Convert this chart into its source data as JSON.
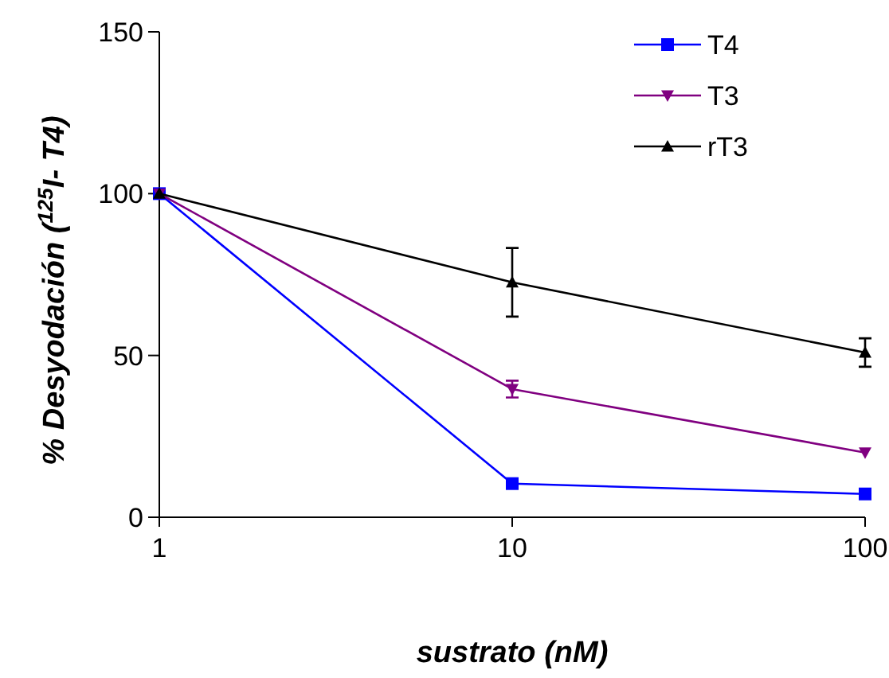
{
  "chart_data": {
    "type": "line",
    "xlabel": "sustrato (nM)",
    "ylabel": "% Desyodación ($^{125}$I- T4)",
    "log": "x",
    "xlim": [
      1,
      100
    ],
    "xticks": [
      1,
      10,
      100
    ],
    "ylim": [
      0,
      150
    ],
    "yticks": [
      0,
      50,
      100,
      150
    ],
    "grid": false,
    "legend": "top right",
    "x": [
      1,
      10,
      100
    ],
    "series": [
      {
        "name": "T4",
        "color": "#0000ff",
        "marker": "square",
        "values": [
          100,
          10.4,
          7.2
        ],
        "errors": [
          null,
          1,
          null
        ]
      },
      {
        "name": "T3",
        "color": "#800080",
        "marker": "triangle-down",
        "values": [
          100,
          39.6,
          20
        ],
        "errors": [
          null,
          2.6,
          null
        ]
      },
      {
        "name": "rT3",
        "color": "#000000",
        "marker": "triangle",
        "values": [
          100,
          72.6,
          50.9
        ],
        "errors": [
          null,
          10.6,
          4.4
        ]
      }
    ]
  }
}
